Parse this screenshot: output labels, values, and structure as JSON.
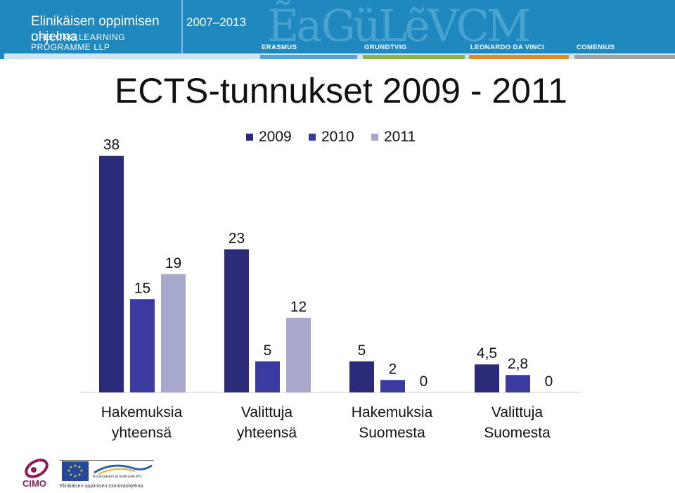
{
  "banner": {
    "title_line1": "Elinikäisen oppimisen ohjelma",
    "title_line2": "LIFELONG LEARNING PROGRAMME LLP",
    "years": "2007–2013",
    "programmes": [
      "ERASMUS",
      "GRUNDTVIG",
      "LEONARDO DA VINCI",
      "COMENIUS"
    ],
    "programme_colors": [
      "#5aa0d0",
      "#8ab44a",
      "#e08a2a",
      "#a0a0a0"
    ]
  },
  "slide": {
    "title": "ECTS-tunnukset 2009 - 2011"
  },
  "chart_data": {
    "type": "bar",
    "categories": [
      [
        "Hakemuksia",
        "yhteensä"
      ],
      [
        "Valittuja",
        "yhteensä"
      ],
      [
        "Hakemuksia",
        "Suomesta"
      ],
      [
        "Valittuja",
        "Suomesta"
      ]
    ],
    "series": [
      {
        "name": "2009",
        "values": [
          38,
          23,
          5,
          4.5
        ],
        "labels": [
          "38",
          "23",
          "5",
          "4,5"
        ],
        "color": "#2b2b7a"
      },
      {
        "name": "2010",
        "values": [
          15,
          5,
          2,
          2.8
        ],
        "labels": [
          "15",
          "5",
          "2",
          "2,8"
        ],
        "color": "#3a3aa0"
      },
      {
        "name": "2011",
        "values": [
          19,
          12,
          0,
          0
        ],
        "labels": [
          "19",
          "12",
          "0",
          "0"
        ],
        "color": "#a8a8cc"
      }
    ],
    "legend": "top",
    "grid": false,
    "ylim": [
      0,
      40
    ]
  },
  "footer": {
    "org": "CIMO",
    "sub": "Elinikäisen oppimisen toimintaohjelma",
    "small": "Koulutuksen ja kulttuurin PO"
  }
}
